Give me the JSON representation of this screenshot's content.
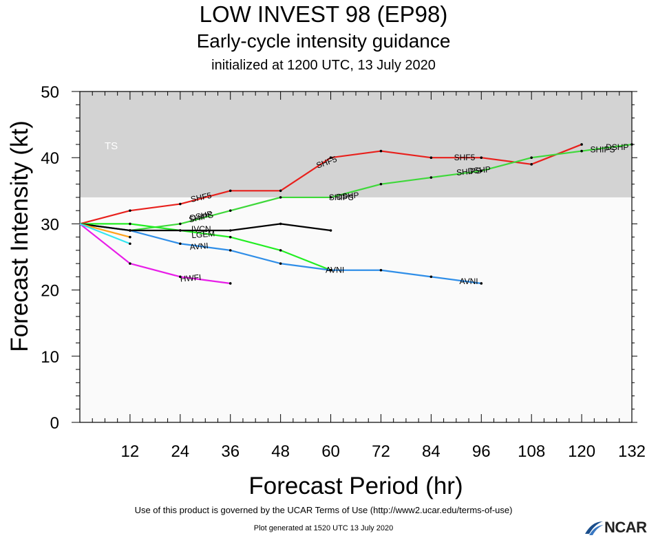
{
  "title": "LOW INVEST 98 (EP98)",
  "subtitle": "Early-cycle intensity guidance",
  "init": "initialized at 1200 UTC, 13 July 2020",
  "footer_terms": "Use of this product is governed by the UCAR Terms of Use (http://www2.ucar.edu/terms-of-use)",
  "footer_generated": "Plot generated at 1520 UTC   13 July 2020",
  "logo_text": "NCAR",
  "colors": {
    "ts_band": "#d3d3d3",
    "plot_bg": "#fafafa",
    "ts_label": "#ffffff"
  },
  "chart_data": {
    "type": "line",
    "xlabel": "Forecast Period (hr)",
    "ylabel": "Forecast Intensity (kt)",
    "xlim": [
      0,
      132
    ],
    "ylim": [
      0,
      50
    ],
    "xticks": [
      12,
      24,
      36,
      48,
      60,
      72,
      84,
      96,
      108,
      120,
      132
    ],
    "yticks": [
      0,
      10,
      20,
      30,
      40,
      50
    ],
    "grid": false,
    "bands": [
      {
        "label": "TS",
        "from": 34,
        "to": 50,
        "color": "#d3d3d3"
      }
    ],
    "series": [
      {
        "name": "SHF5",
        "color": "#e8201c",
        "x": [
          0,
          12,
          24,
          36,
          48,
          60,
          72,
          84,
          96,
          108,
          120
        ],
        "y": [
          30,
          32,
          33,
          35,
          35,
          40,
          41,
          40,
          40,
          39,
          42
        ]
      },
      {
        "name": "DSHP",
        "color": "#3ed83a",
        "x": [
          0,
          12,
          24,
          36,
          48,
          60,
          72,
          84,
          96,
          108,
          120,
          132
        ],
        "y": [
          30,
          29,
          30,
          32,
          34,
          34,
          36,
          37,
          38,
          40,
          41,
          42
        ]
      },
      {
        "name": "LGEM",
        "color": "#22ee22",
        "x": [
          0,
          12,
          24,
          36,
          48,
          60
        ],
        "y": [
          30,
          30,
          29,
          28,
          26,
          23
        ]
      },
      {
        "name": "AVNI",
        "color": "#2f8ee8",
        "x": [
          0,
          12,
          24,
          36,
          48,
          60,
          72,
          84,
          96
        ],
        "y": [
          30,
          29,
          27,
          26,
          24,
          23,
          23,
          22,
          21
        ]
      },
      {
        "name": "IVCN",
        "color": "#000000",
        "x": [
          0,
          12,
          24,
          36,
          48,
          60
        ],
        "y": [
          30,
          29,
          29,
          29,
          30,
          29
        ]
      },
      {
        "name": "HWFI",
        "color": "#e81de8",
        "x": [
          0,
          12,
          24,
          36
        ],
        "y": [
          30,
          24,
          22,
          21
        ]
      },
      {
        "name": "",
        "color": "#ffa31a",
        "x": [
          0,
          12
        ],
        "y": [
          30,
          28
        ]
      },
      {
        "name": "",
        "color": "#33e6f0",
        "x": [
          0,
          12
        ],
        "y": [
          30,
          27
        ]
      }
    ],
    "annotations": [
      {
        "text": "SHF5",
        "x": 29,
        "y": 34.0,
        "angle": -12,
        "color": "#000000"
      },
      {
        "text": "SHF5",
        "x": 59,
        "y": 39.3,
        "angle": -20,
        "color": "#000000"
      },
      {
        "text": "SHF5",
        "x": 92,
        "y": 40.0,
        "angle": 0,
        "color": "#000000"
      },
      {
        "text": "SHIPS",
        "x": 29,
        "y": 31.0,
        "angle": -12,
        "color": "#000000"
      },
      {
        "text": "DSHP",
        "x": 29,
        "y": 31.2,
        "angle": -12,
        "color": "#000000"
      },
      {
        "text": "SHIPS",
        "x": 62.5,
        "y": 34.0,
        "angle": 0,
        "color": "#000000"
      },
      {
        "text": "DSHP",
        "x": 64,
        "y": 34.2,
        "angle": -5,
        "color": "#000000"
      },
      {
        "text": "SHIPS",
        "x": 93,
        "y": 37.9,
        "angle": -5,
        "color": "#000000"
      },
      {
        "text": "DSHP",
        "x": 95.5,
        "y": 38.1,
        "angle": -5,
        "color": "#000000"
      },
      {
        "text": "SHIPS",
        "x": 125,
        "y": 41.2,
        "angle": 0,
        "color": "#000000"
      },
      {
        "text": "DSHP",
        "x": 128.5,
        "y": 41.6,
        "angle": 0,
        "color": "#000000"
      },
      {
        "text": "IVCN",
        "x": 29,
        "y": 29.2,
        "angle": 0,
        "color": "#000000"
      },
      {
        "text": "LGEM",
        "x": 29.5,
        "y": 28.4,
        "angle": -5,
        "color": "#000000"
      },
      {
        "text": "AVNI",
        "x": 28.5,
        "y": 26.6,
        "angle": -5,
        "color": "#000000"
      },
      {
        "text": "AVNI",
        "x": 61,
        "y": 23.0,
        "angle": 0,
        "color": "#000000"
      },
      {
        "text": "AVNI",
        "x": 93,
        "y": 21.3,
        "angle": 0,
        "color": "#000000"
      },
      {
        "text": "HWFI",
        "x": 26.5,
        "y": 21.8,
        "angle": -5,
        "color": "#000000"
      }
    ]
  }
}
